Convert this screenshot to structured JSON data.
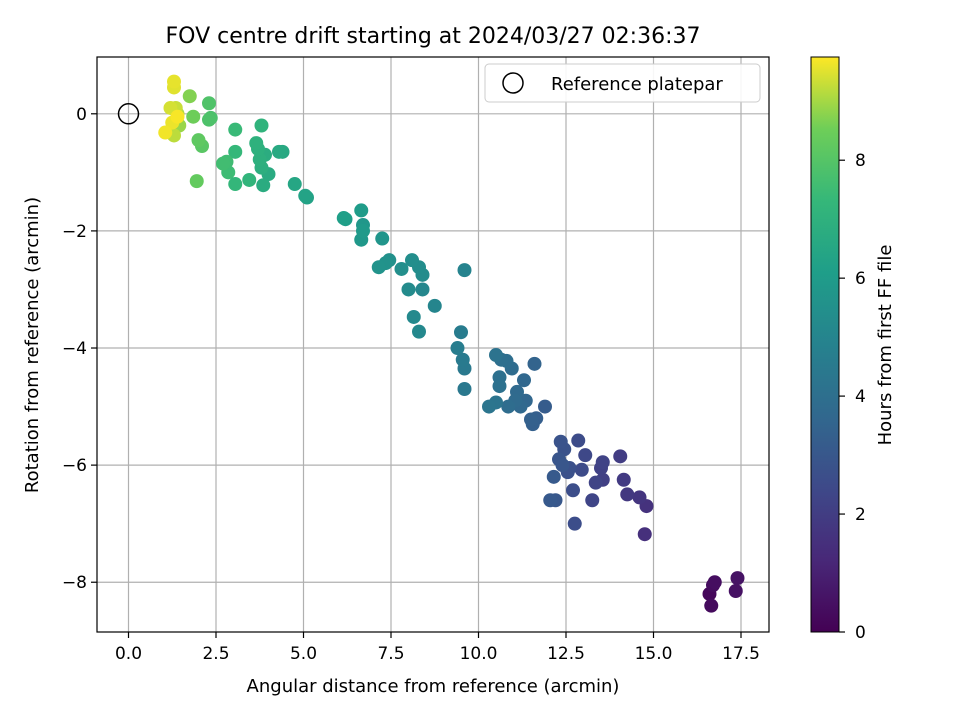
{
  "chart_data": {
    "type": "scatter",
    "title": "FOV centre drift starting at 2024/03/27 02:36:37",
    "xlabel": "Angular distance from reference (arcmin)",
    "ylabel": "Rotation from reference (arcmin)",
    "xlim": [
      -0.9,
      18.3
    ],
    "ylim": [
      -8.85,
      0.97
    ],
    "grid": true,
    "x_ticks": [
      0.0,
      2.5,
      5.0,
      7.5,
      10.0,
      12.5,
      15.0,
      17.5
    ],
    "x_tick_labels": [
      "0.0",
      "2.5",
      "5.0",
      "7.5",
      "10.0",
      "12.5",
      "15.0",
      "17.5"
    ],
    "y_ticks": [
      0,
      -2,
      -4,
      -6,
      -8
    ],
    "y_tick_labels": [
      "0",
      "−2",
      "−4",
      "−6",
      "−8"
    ],
    "legend": {
      "position": "top-right",
      "label": "Reference platepar"
    },
    "reference_point": {
      "x": 0,
      "y": 0
    },
    "colorbar": {
      "label": "Hours from first FF file",
      "colormap": "viridis",
      "range": [
        0,
        9.75
      ],
      "ticks": [
        0,
        2,
        4,
        6,
        8
      ],
      "tick_labels": [
        "0",
        "2",
        "4",
        "6",
        "8"
      ]
    },
    "points": [
      {
        "x": 16.6,
        "y": -8.2,
        "h": 0.2
      },
      {
        "x": 16.65,
        "y": -8.4,
        "h": 0.3
      },
      {
        "x": 16.7,
        "y": -8.05,
        "h": 0.35
      },
      {
        "x": 16.75,
        "y": -8.0,
        "h": 0.4
      },
      {
        "x": 17.35,
        "y": -8.15,
        "h": 0.5
      },
      {
        "x": 17.4,
        "y": -7.93,
        "h": 0.55
      },
      {
        "x": 14.75,
        "y": -7.18,
        "h": 1.5
      },
      {
        "x": 14.8,
        "y": -6.7,
        "h": 1.6
      },
      {
        "x": 14.6,
        "y": -6.55,
        "h": 1.7
      },
      {
        "x": 14.25,
        "y": -6.5,
        "h": 1.8
      },
      {
        "x": 14.15,
        "y": -6.25,
        "h": 1.9
      },
      {
        "x": 14.05,
        "y": -5.85,
        "h": 2.0
      },
      {
        "x": 13.55,
        "y": -6.25,
        "h": 2.1
      },
      {
        "x": 13.5,
        "y": -6.05,
        "h": 2.15
      },
      {
        "x": 13.55,
        "y": -5.95,
        "h": 2.2
      },
      {
        "x": 13.35,
        "y": -6.3,
        "h": 2.25
      },
      {
        "x": 13.25,
        "y": -6.6,
        "h": 2.3
      },
      {
        "x": 13.05,
        "y": -5.83,
        "h": 2.4
      },
      {
        "x": 12.95,
        "y": -6.08,
        "h": 2.5
      },
      {
        "x": 12.85,
        "y": -5.58,
        "h": 2.55
      },
      {
        "x": 12.75,
        "y": -7.0,
        "h": 2.6
      },
      {
        "x": 12.7,
        "y": -6.43,
        "h": 2.65
      },
      {
        "x": 12.6,
        "y": -6.05,
        "h": 2.7
      },
      {
        "x": 12.55,
        "y": -6.12,
        "h": 2.75
      },
      {
        "x": 12.45,
        "y": -5.73,
        "h": 2.8
      },
      {
        "x": 12.35,
        "y": -5.6,
        "h": 2.85
      },
      {
        "x": 12.3,
        "y": -5.9,
        "h": 2.9
      },
      {
        "x": 12.4,
        "y": -6.0,
        "h": 2.95
      },
      {
        "x": 12.2,
        "y": -6.6,
        "h": 3.0
      },
      {
        "x": 12.05,
        "y": -6.6,
        "h": 3.05
      },
      {
        "x": 12.15,
        "y": -6.2,
        "h": 3.1
      },
      {
        "x": 11.9,
        "y": -5.0,
        "h": 3.2
      },
      {
        "x": 11.65,
        "y": -5.2,
        "h": 3.3
      },
      {
        "x": 11.55,
        "y": -5.3,
        "h": 3.35
      },
      {
        "x": 11.5,
        "y": -5.22,
        "h": 3.4
      },
      {
        "x": 11.6,
        "y": -4.27,
        "h": 3.5
      },
      {
        "x": 11.35,
        "y": -4.9,
        "h": 3.6
      },
      {
        "x": 11.3,
        "y": -4.55,
        "h": 3.65
      },
      {
        "x": 11.2,
        "y": -5.0,
        "h": 3.7
      },
      {
        "x": 11.1,
        "y": -4.75,
        "h": 3.75
      },
      {
        "x": 11.05,
        "y": -4.9,
        "h": 3.8
      },
      {
        "x": 10.95,
        "y": -4.35,
        "h": 3.85
      },
      {
        "x": 10.85,
        "y": -5.0,
        "h": 3.9
      },
      {
        "x": 10.8,
        "y": -4.22,
        "h": 3.95
      },
      {
        "x": 10.65,
        "y": -4.2,
        "h": 4.0
      },
      {
        "x": 10.6,
        "y": -4.5,
        "h": 4.05
      },
      {
        "x": 10.6,
        "y": -4.65,
        "h": 4.1
      },
      {
        "x": 10.5,
        "y": -4.12,
        "h": 4.15
      },
      {
        "x": 10.5,
        "y": -4.93,
        "h": 4.2
      },
      {
        "x": 10.3,
        "y": -5.0,
        "h": 4.25
      },
      {
        "x": 9.6,
        "y": -4.7,
        "h": 4.4
      },
      {
        "x": 9.6,
        "y": -4.35,
        "h": 4.45
      },
      {
        "x": 9.55,
        "y": -4.2,
        "h": 4.5
      },
      {
        "x": 9.5,
        "y": -3.73,
        "h": 4.6
      },
      {
        "x": 9.4,
        "y": -4.0,
        "h": 4.65
      },
      {
        "x": 9.6,
        "y": -2.67,
        "h": 4.9
      },
      {
        "x": 8.75,
        "y": -3.28,
        "h": 5.0
      },
      {
        "x": 8.4,
        "y": -3.0,
        "h": 5.1
      },
      {
        "x": 8.3,
        "y": -3.72,
        "h": 5.15
      },
      {
        "x": 8.15,
        "y": -3.47,
        "h": 5.2
      },
      {
        "x": 8.0,
        "y": -3.0,
        "h": 5.25
      },
      {
        "x": 8.4,
        "y": -2.75,
        "h": 5.3
      },
      {
        "x": 8.3,
        "y": -2.62,
        "h": 5.35
      },
      {
        "x": 8.1,
        "y": -2.5,
        "h": 5.4
      },
      {
        "x": 7.8,
        "y": -2.65,
        "h": 5.45
      },
      {
        "x": 7.45,
        "y": -2.5,
        "h": 5.5
      },
      {
        "x": 7.35,
        "y": -2.55,
        "h": 5.55
      },
      {
        "x": 7.15,
        "y": -2.62,
        "h": 5.6
      },
      {
        "x": 7.25,
        "y": -2.13,
        "h": 5.7
      },
      {
        "x": 6.7,
        "y": -1.9,
        "h": 5.8
      },
      {
        "x": 6.65,
        "y": -2.15,
        "h": 5.85
      },
      {
        "x": 6.7,
        "y": -2.0,
        "h": 5.9
      },
      {
        "x": 6.65,
        "y": -1.65,
        "h": 6.0
      },
      {
        "x": 6.2,
        "y": -1.8,
        "h": 6.1
      },
      {
        "x": 6.15,
        "y": -1.78,
        "h": 6.15
      },
      {
        "x": 5.1,
        "y": -1.43,
        "h": 6.3
      },
      {
        "x": 5.05,
        "y": -1.4,
        "h": 6.35
      },
      {
        "x": 4.75,
        "y": -1.2,
        "h": 6.5
      },
      {
        "x": 4.4,
        "y": -0.65,
        "h": 6.6
      },
      {
        "x": 4.3,
        "y": -0.65,
        "h": 6.65
      },
      {
        "x": 4.0,
        "y": -1.03,
        "h": 6.7
      },
      {
        "x": 3.85,
        "y": -1.22,
        "h": 6.75
      },
      {
        "x": 3.9,
        "y": -0.7,
        "h": 6.8
      },
      {
        "x": 3.8,
        "y": -0.92,
        "h": 6.85
      },
      {
        "x": 3.75,
        "y": -0.78,
        "h": 6.9
      },
      {
        "x": 3.7,
        "y": -0.6,
        "h": 6.95
      },
      {
        "x": 3.65,
        "y": -0.5,
        "h": 7.0
      },
      {
        "x": 3.8,
        "y": -0.2,
        "h": 7.1
      },
      {
        "x": 3.45,
        "y": -1.13,
        "h": 7.15
      },
      {
        "x": 3.05,
        "y": -1.2,
        "h": 7.25
      },
      {
        "x": 3.05,
        "y": -0.65,
        "h": 7.3
      },
      {
        "x": 3.05,
        "y": -0.27,
        "h": 7.4
      },
      {
        "x": 2.85,
        "y": -1.0,
        "h": 7.5
      },
      {
        "x": 2.8,
        "y": -0.82,
        "h": 7.55
      },
      {
        "x": 2.7,
        "y": -0.85,
        "h": 7.6
      },
      {
        "x": 2.35,
        "y": -0.07,
        "h": 7.8
      },
      {
        "x": 2.3,
        "y": -0.1,
        "h": 7.85
      },
      {
        "x": 2.3,
        "y": 0.18,
        "h": 7.9
      },
      {
        "x": 2.1,
        "y": -0.55,
        "h": 8.1
      },
      {
        "x": 2.0,
        "y": -0.45,
        "h": 8.2
      },
      {
        "x": 1.95,
        "y": -1.15,
        "h": 8.3
      },
      {
        "x": 1.85,
        "y": -0.05,
        "h": 8.5
      },
      {
        "x": 1.75,
        "y": 0.3,
        "h": 8.7
      },
      {
        "x": 1.45,
        "y": -0.2,
        "h": 8.9
      },
      {
        "x": 1.4,
        "y": 0.0,
        "h": 9.1
      },
      {
        "x": 1.3,
        "y": -0.37,
        "h": 9.2
      },
      {
        "x": 1.35,
        "y": 0.1,
        "h": 9.3
      },
      {
        "x": 1.2,
        "y": 0.1,
        "h": 9.4
      },
      {
        "x": 1.3,
        "y": 0.45,
        "h": 9.5
      },
      {
        "x": 1.3,
        "y": 0.55,
        "h": 9.55
      },
      {
        "x": 1.25,
        "y": -0.15,
        "h": 9.6
      },
      {
        "x": 1.05,
        "y": -0.32,
        "h": 9.65
      },
      {
        "x": 1.4,
        "y": -0.05,
        "h": 9.7
      }
    ]
  }
}
